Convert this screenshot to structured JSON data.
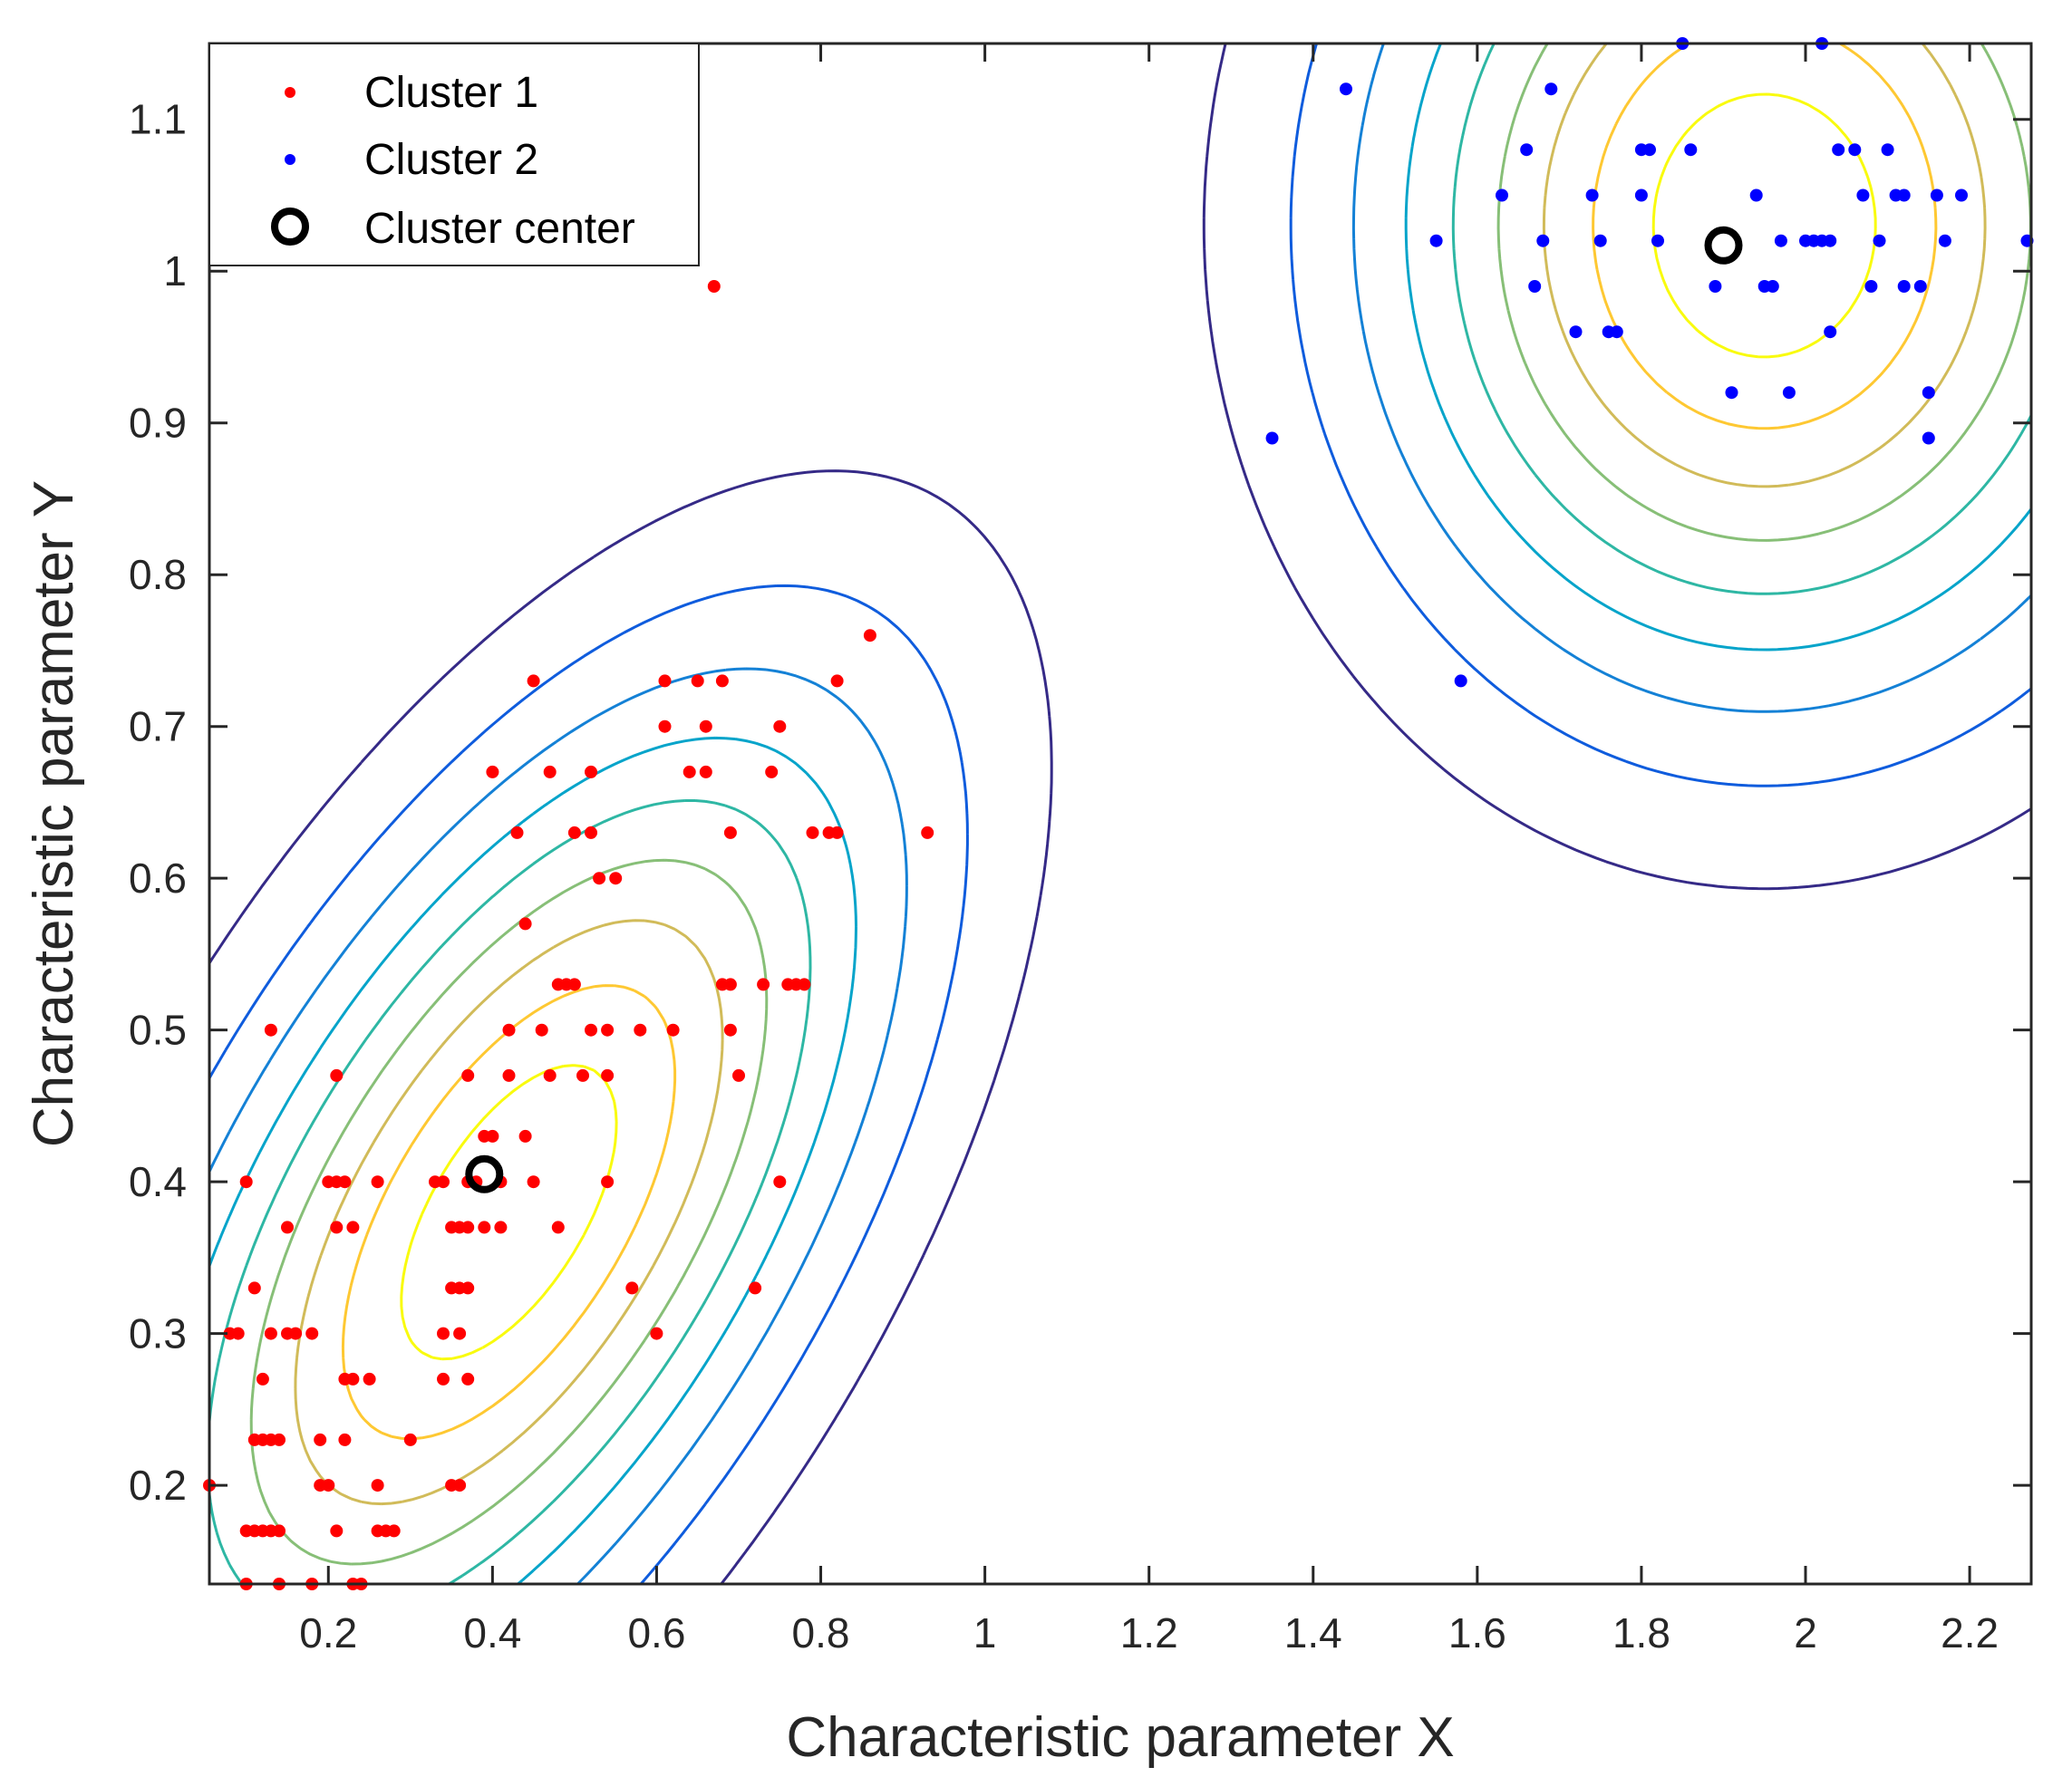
{
  "chart_data": {
    "type": "scatter",
    "title": "",
    "xlabel": "Characteristic parameter X",
    "ylabel": "Characteristic parameter Y",
    "xlim": [
      0.055,
      2.275
    ],
    "ylim": [
      0.135,
      1.15
    ],
    "xticks": [
      0.2,
      0.4,
      0.6,
      0.8,
      1.0,
      1.2,
      1.4,
      1.6,
      1.8,
      2.0,
      2.2
    ],
    "xtick_labels": [
      "0.2",
      "0.4",
      "0.6",
      "0.8",
      "1",
      "1.2",
      "1.4",
      "1.6",
      "1.8",
      "2",
      "2.2"
    ],
    "yticks": [
      0.2,
      0.3,
      0.4,
      0.5,
      0.6,
      0.7,
      0.8,
      0.9,
      1.0,
      1.1
    ],
    "ytick_labels": [
      "0.2",
      "0.3",
      "0.4",
      "0.5",
      "0.6",
      "0.7",
      "0.8",
      "0.9",
      "1",
      "1.1"
    ],
    "grid": false,
    "legend_position": "top-left",
    "legend": [
      {
        "label": "Cluster 1",
        "marker": "dot",
        "color": "#ff0000"
      },
      {
        "label": "Cluster 2",
        "marker": "dot",
        "color": "#0000ff"
      },
      {
        "label": "Cluster center",
        "marker": "ring",
        "color": "#000000"
      }
    ],
    "series": [
      {
        "name": "Cluster 1",
        "color": "#ff0000",
        "points": [
          [
            0.055,
            0.2
          ],
          [
            0.08,
            0.3
          ],
          [
            0.09,
            0.3
          ],
          [
            0.1,
            0.4
          ],
          [
            0.1,
            0.17
          ],
          [
            0.1,
            0.135
          ],
          [
            0.11,
            0.33
          ],
          [
            0.11,
            0.23
          ],
          [
            0.11,
            0.17
          ],
          [
            0.12,
            0.27
          ],
          [
            0.12,
            0.23
          ],
          [
            0.12,
            0.17
          ],
          [
            0.13,
            0.5
          ],
          [
            0.13,
            0.3
          ],
          [
            0.13,
            0.23
          ],
          [
            0.13,
            0.17
          ],
          [
            0.14,
            0.23
          ],
          [
            0.14,
            0.17
          ],
          [
            0.14,
            0.135
          ],
          [
            0.15,
            0.37
          ],
          [
            0.15,
            0.3
          ],
          [
            0.16,
            0.3
          ],
          [
            0.18,
            0.3
          ],
          [
            0.18,
            0.135
          ],
          [
            0.19,
            0.23
          ],
          [
            0.19,
            0.2
          ],
          [
            0.2,
            0.4
          ],
          [
            0.2,
            0.2
          ],
          [
            0.21,
            0.47
          ],
          [
            0.21,
            0.4
          ],
          [
            0.21,
            0.37
          ],
          [
            0.21,
            0.17
          ],
          [
            0.22,
            0.4
          ],
          [
            0.22,
            0.27
          ],
          [
            0.22,
            0.23
          ],
          [
            0.23,
            0.37
          ],
          [
            0.23,
            0.27
          ],
          [
            0.23,
            0.135
          ],
          [
            0.24,
            0.135
          ],
          [
            0.25,
            0.27
          ],
          [
            0.26,
            0.4
          ],
          [
            0.26,
            0.2
          ],
          [
            0.26,
            0.17
          ],
          [
            0.27,
            0.17
          ],
          [
            0.28,
            0.17
          ],
          [
            0.3,
            0.23
          ],
          [
            0.33,
            0.4
          ],
          [
            0.34,
            0.4
          ],
          [
            0.34,
            0.3
          ],
          [
            0.34,
            0.27
          ],
          [
            0.35,
            0.37
          ],
          [
            0.35,
            0.33
          ],
          [
            0.35,
            0.2
          ],
          [
            0.36,
            0.37
          ],
          [
            0.36,
            0.33
          ],
          [
            0.36,
            0.3
          ],
          [
            0.36,
            0.2
          ],
          [
            0.37,
            0.47
          ],
          [
            0.37,
            0.4
          ],
          [
            0.37,
            0.37
          ],
          [
            0.37,
            0.33
          ],
          [
            0.37,
            0.27
          ],
          [
            0.38,
            0.4
          ],
          [
            0.39,
            0.43
          ],
          [
            0.39,
            0.37
          ],
          [
            0.4,
            0.43
          ],
          [
            0.4,
            0.67
          ],
          [
            0.41,
            0.37
          ],
          [
            0.41,
            0.4
          ],
          [
            0.42,
            0.47
          ],
          [
            0.42,
            0.5
          ],
          [
            0.43,
            0.63
          ],
          [
            0.44,
            0.43
          ],
          [
            0.44,
            0.57
          ],
          [
            0.45,
            0.73
          ],
          [
            0.45,
            0.4
          ],
          [
            0.46,
            0.5
          ],
          [
            0.47,
            0.67
          ],
          [
            0.47,
            0.47
          ],
          [
            0.48,
            0.53
          ],
          [
            0.48,
            0.37
          ],
          [
            0.49,
            0.53
          ],
          [
            0.5,
            0.63
          ],
          [
            0.5,
            0.53
          ],
          [
            0.51,
            0.47
          ],
          [
            0.52,
            0.67
          ],
          [
            0.52,
            0.63
          ],
          [
            0.52,
            0.5
          ],
          [
            0.53,
            0.6
          ],
          [
            0.54,
            0.47
          ],
          [
            0.54,
            0.5
          ],
          [
            0.54,
            0.4
          ],
          [
            0.55,
            0.6
          ],
          [
            0.57,
            0.33
          ],
          [
            0.58,
            0.5
          ],
          [
            0.6,
            0.3
          ],
          [
            0.61,
            0.73
          ],
          [
            0.61,
            0.7
          ],
          [
            0.62,
            0.5
          ],
          [
            0.64,
            0.67
          ],
          [
            0.65,
            0.73
          ],
          [
            0.66,
            0.7
          ],
          [
            0.66,
            0.67
          ],
          [
            0.67,
            0.99
          ],
          [
            0.68,
            0.73
          ],
          [
            0.68,
            0.53
          ],
          [
            0.69,
            0.53
          ],
          [
            0.69,
            0.63
          ],
          [
            0.69,
            0.5
          ],
          [
            0.7,
            0.47
          ],
          [
            0.72,
            0.33
          ],
          [
            0.73,
            0.53
          ],
          [
            0.74,
            0.67
          ],
          [
            0.75,
            0.4
          ],
          [
            0.75,
            0.7
          ],
          [
            0.76,
            0.53
          ],
          [
            0.77,
            0.53
          ],
          [
            0.78,
            0.53
          ],
          [
            0.79,
            0.63
          ],
          [
            0.81,
            0.63
          ],
          [
            0.82,
            0.73
          ],
          [
            0.82,
            0.63
          ],
          [
            0.86,
            0.76
          ],
          [
            0.93,
            0.63
          ]
        ]
      },
      {
        "name": "Cluster 2",
        "color": "#0000ff",
        "points": [
          [
            1.35,
            0.89
          ],
          [
            1.44,
            1.12
          ],
          [
            1.55,
            1.02
          ],
          [
            1.58,
            0.73
          ],
          [
            1.63,
            1.05
          ],
          [
            1.66,
            1.08
          ],
          [
            1.67,
            0.99
          ],
          [
            1.68,
            1.02
          ],
          [
            1.69,
            1.12
          ],
          [
            1.72,
            0.96
          ],
          [
            1.74,
            1.05
          ],
          [
            1.75,
            1.02
          ],
          [
            1.76,
            0.96
          ],
          [
            1.77,
            0.96
          ],
          [
            1.8,
            1.08
          ],
          [
            1.8,
            1.05
          ],
          [
            1.81,
            1.08
          ],
          [
            1.82,
            1.02
          ],
          [
            1.85,
            1.15
          ],
          [
            1.86,
            1.08
          ],
          [
            1.89,
            0.99
          ],
          [
            1.91,
            0.92
          ],
          [
            1.94,
            1.05
          ],
          [
            1.95,
            0.99
          ],
          [
            1.96,
            0.99
          ],
          [
            1.97,
            1.02
          ],
          [
            1.98,
            0.92
          ],
          [
            2.0,
            1.02
          ],
          [
            2.01,
            1.02
          ],
          [
            2.02,
            1.15
          ],
          [
            2.02,
            1.02
          ],
          [
            2.03,
            1.02
          ],
          [
            2.03,
            0.96
          ],
          [
            2.04,
            1.08
          ],
          [
            2.06,
            1.08
          ],
          [
            2.07,
            1.05
          ],
          [
            2.08,
            0.99
          ],
          [
            2.09,
            1.02
          ],
          [
            2.1,
            1.08
          ],
          [
            2.11,
            1.05
          ],
          [
            2.12,
            1.05
          ],
          [
            2.12,
            0.99
          ],
          [
            2.14,
            0.99
          ],
          [
            2.15,
            0.92
          ],
          [
            2.15,
            0.89
          ],
          [
            2.16,
            1.05
          ],
          [
            2.17,
            1.02
          ],
          [
            2.19,
            1.05
          ],
          [
            2.27,
            1.02
          ]
        ]
      },
      {
        "name": "Cluster center",
        "color": "#000000",
        "points": [
          [
            0.39,
            0.405
          ],
          [
            1.9,
            1.017
          ]
        ]
      }
    ],
    "contour_levels": [
      {
        "level": 1,
        "color": "#352a87"
      },
      {
        "level": 2,
        "color": "#0f5cdd"
      },
      {
        "level": 3,
        "color": "#1481d6"
      },
      {
        "level": 4,
        "color": "#06a4ca"
      },
      {
        "level": 5,
        "color": "#2eb7a4"
      },
      {
        "level": 6,
        "color": "#87bf77"
      },
      {
        "level": 7,
        "color": "#d1bb59"
      },
      {
        "level": 8,
        "color": "#fec832"
      },
      {
        "level": 9,
        "color": "#f9fb0e"
      }
    ]
  }
}
